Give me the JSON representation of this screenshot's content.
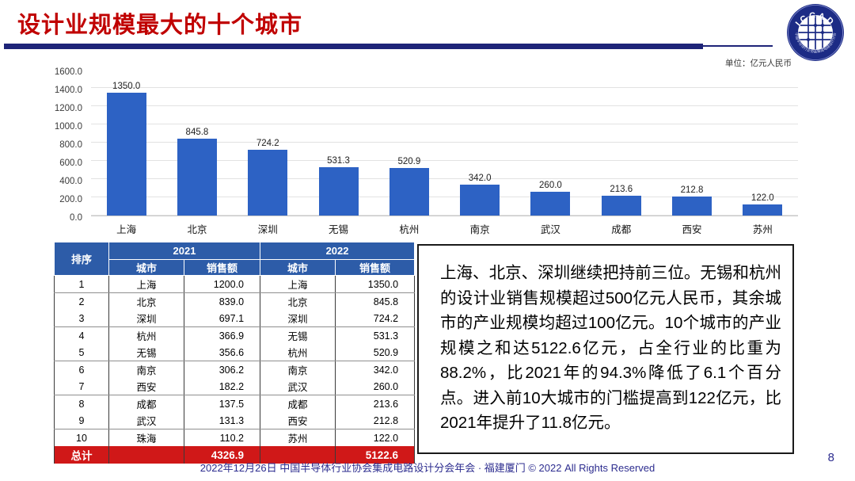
{
  "slide": {
    "title": "设计业规模最大的十个城市",
    "unit_label": "单位：亿元人民币",
    "footer": "2022年12月26日 中国半导体行业协会集成电路设计分会年会 · 福建厦门 © 2022 All Rights Reserved",
    "page_number": "8"
  },
  "logo": {
    "top_text": "ICCAD",
    "bottom_text": "中国半导体行业协会集成电路设计分会"
  },
  "colors": {
    "title_red": "#C00000",
    "rule_navy": "#1E2478",
    "bar_blue": "#2D62C4",
    "table_header_blue": "#2D5CA8",
    "total_row_red": "#D01818",
    "footer_navy": "#2D2D8F"
  },
  "chart_data": {
    "type": "bar",
    "title": "",
    "xlabel": "",
    "ylabel": "",
    "unit": "亿元人民币",
    "categories": [
      "上海",
      "北京",
      "深圳",
      "无锡",
      "杭州",
      "南京",
      "武汉",
      "成都",
      "西安",
      "苏州"
    ],
    "values": [
      1350.0,
      845.8,
      724.2,
      531.3,
      520.9,
      342.0,
      260.0,
      213.6,
      212.8,
      122.0
    ],
    "value_labels": [
      "1350.0",
      "845.8",
      "724.2",
      "531.3",
      "520.9",
      "342.0",
      "260.0",
      "213.6",
      "212.8",
      "122.0"
    ],
    "ylim": [
      0,
      1600
    ],
    "ytick_step": 200,
    "yticks": [
      "0.0",
      "200.0",
      "400.0",
      "600.0",
      "800.0",
      "1000.0",
      "1200.0",
      "1400.0",
      "1600.0"
    ],
    "grid": true,
    "legend": false,
    "bar_color": "#2D62C4"
  },
  "table": {
    "header": {
      "rank": "排序",
      "year2021": "2021",
      "year2022": "2022",
      "city": "城市",
      "sales": "销售额"
    },
    "rows": [
      {
        "rank": "1",
        "city2021": "上海",
        "sales2021": "1200.0",
        "city2022": "上海",
        "sales2022": "1350.0"
      },
      {
        "rank": "2",
        "city2021": "北京",
        "sales2021": "839.0",
        "city2022": "北京",
        "sales2022": "845.8"
      },
      {
        "rank": "3",
        "city2021": "深圳",
        "sales2021": "697.1",
        "city2022": "深圳",
        "sales2022": "724.2"
      },
      {
        "rank": "4",
        "city2021": "杭州",
        "sales2021": "366.9",
        "city2022": "无锡",
        "sales2022": "531.3"
      },
      {
        "rank": "5",
        "city2021": "无锡",
        "sales2021": "356.6",
        "city2022": "杭州",
        "sales2022": "520.9"
      },
      {
        "rank": "6",
        "city2021": "南京",
        "sales2021": "306.2",
        "city2022": "南京",
        "sales2022": "342.0"
      },
      {
        "rank": "7",
        "city2021": "西安",
        "sales2021": "182.2",
        "city2022": "武汉",
        "sales2022": "260.0"
      },
      {
        "rank": "8",
        "city2021": "成都",
        "sales2021": "137.5",
        "city2022": "成都",
        "sales2022": "213.6"
      },
      {
        "rank": "9",
        "city2021": "武汉",
        "sales2021": "131.3",
        "city2022": "西安",
        "sales2022": "212.8"
      },
      {
        "rank": "10",
        "city2021": "珠海",
        "sales2021": "110.2",
        "city2022": "苏州",
        "sales2022": "122.0"
      }
    ],
    "total": {
      "label": "总计",
      "sales2021": "4326.9",
      "sales2022": "5122.6"
    }
  },
  "commentary": {
    "text": "上海、北京、深圳继续把持前三位。无锡和杭州的设计业销售规模超过500亿元人民币，其余城市的产业规模均超过100亿元。10个城市的产业规模之和达5122.6亿元，占全行业的比重为88.2%，比2021年的94.3%降低了6.1个百分点。进入前10大城市的门槛提高到122亿元，比2021年提升了11.8亿元。"
  }
}
